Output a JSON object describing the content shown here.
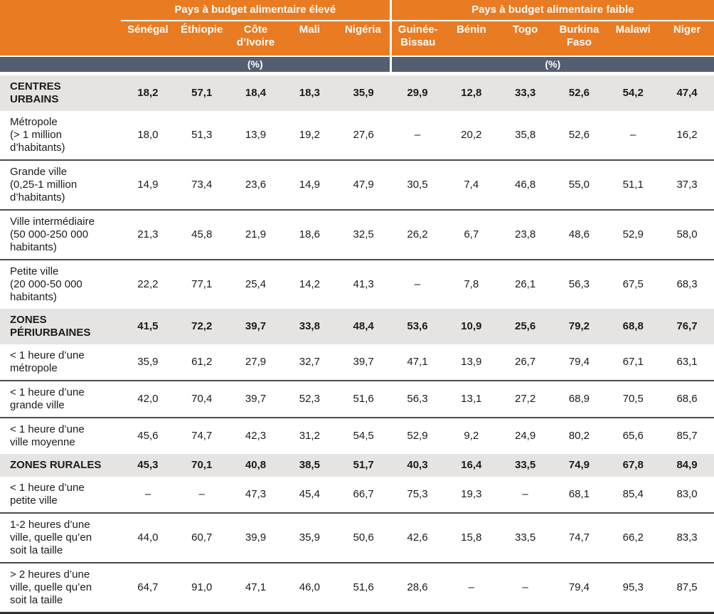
{
  "table": {
    "column_groups": [
      {
        "label": "Pays à budget alimentaire élevé",
        "unit": "(%)",
        "countries": [
          "Sénégal",
          "Éthiopie",
          "Côte\nd’Ivoire",
          "Mali",
          "Nigéria"
        ]
      },
      {
        "label": "Pays à budget alimentaire faible",
        "unit": "(%)",
        "countries": [
          "Guinée-\nBissau",
          "Bénin",
          "Togo",
          "Burkina\nFaso",
          "Malawi",
          "Niger"
        ]
      }
    ],
    "rows": [
      {
        "label": "CENTRES\nURBAINS",
        "type": "section",
        "values": [
          "18,2",
          "57,1",
          "18,4",
          "18,3",
          "35,9",
          "29,9",
          "12,8",
          "33,3",
          "52,6",
          "54,2",
          "47,4"
        ]
      },
      {
        "label": "Métropole\n(> 1 million\nd’habitants)",
        "type": "data",
        "values": [
          "18,0",
          "51,3",
          "13,9",
          "19,2",
          "27,6",
          "–",
          "20,2",
          "35,8",
          "52,6",
          "–",
          "16,2"
        ]
      },
      {
        "label": "Grande ville\n(0,25-1 million\nd’habitants)",
        "type": "data",
        "values": [
          "14,9",
          "73,4",
          "23,6",
          "14,9",
          "47,9",
          "30,5",
          "7,4",
          "46,8",
          "55,0",
          "51,1",
          "37,3"
        ]
      },
      {
        "label": "Ville intermédiaire\n(50 000-250 000\nhabitants)",
        "type": "data",
        "values": [
          "21,3",
          "45,8",
          "21,9",
          "18,6",
          "32,5",
          "26,2",
          "6,7",
          "23,8",
          "48,6",
          "52,9",
          "58,0"
        ]
      },
      {
        "label": "Petite ville\n(20 000-50 000\nhabitants)",
        "type": "data",
        "values": [
          "22,2",
          "77,1",
          "25,4",
          "14,2",
          "41,3",
          "–",
          "7,8",
          "26,1",
          "56,3",
          "67,5",
          "68,3"
        ]
      },
      {
        "label": "ZONES\nPÉRIURBAINES",
        "type": "section",
        "values": [
          "41,5",
          "72,2",
          "39,7",
          "33,8",
          "48,4",
          "53,6",
          "10,9",
          "25,6",
          "79,2",
          "68,8",
          "76,7"
        ]
      },
      {
        "label": "< 1 heure d’une\nmétropole",
        "type": "data",
        "values": [
          "35,9",
          "61,2",
          "27,9",
          "32,7",
          "39,7",
          "47,1",
          "13,9",
          "26,7",
          "79,4",
          "67,1",
          "63,1"
        ]
      },
      {
        "label": "< 1 heure d’une\ngrande ville",
        "type": "data",
        "values": [
          "42,0",
          "70,4",
          "39,7",
          "52,3",
          "51,6",
          "56,3",
          "13,1",
          "27,2",
          "68,9",
          "70,5",
          "68,6"
        ]
      },
      {
        "label": "< 1 heure d’une\nville moyenne",
        "type": "data",
        "values": [
          "45,6",
          "74,7",
          "42,3",
          "31,2",
          "54,5",
          "52,9",
          "9,2",
          "24,9",
          "80,2",
          "65,6",
          "85,7"
        ]
      },
      {
        "label": "ZONES RURALES",
        "type": "section",
        "values": [
          "45,3",
          "70,1",
          "40,8",
          "38,5",
          "51,7",
          "40,3",
          "16,4",
          "33,5",
          "74,9",
          "67,8",
          "84,9"
        ]
      },
      {
        "label": "< 1 heure d’une\npetite ville",
        "type": "data",
        "values": [
          "–",
          "–",
          "47,3",
          "45,4",
          "66,7",
          "75,3",
          "19,3",
          "–",
          "68,1",
          "85,4",
          "83,0"
        ]
      },
      {
        "label": "1-2 heures d’une\nville, quelle qu’en\nsoit la taille",
        "type": "data",
        "values": [
          "44,0",
          "60,7",
          "39,9",
          "35,9",
          "50,6",
          "42,6",
          "15,8",
          "33,5",
          "74,7",
          "66,2",
          "83,3"
        ]
      },
      {
        "label": "> 2 heures d’une\nville, quelle qu’en\nsoit la taille",
        "type": "data",
        "values": [
          "64,7",
          "91,0",
          "47,1",
          "46,0",
          "51,6",
          "28,6",
          "–",
          "–",
          "79,4",
          "95,3",
          "87,5"
        ]
      }
    ]
  },
  "colors": {
    "header_orange": "#e97b22",
    "unit_band_slate": "#545e70",
    "section_row_gray": "#e5e4e2",
    "row_rule": "#4b4b4b",
    "bottom_rule": "#2f2f2f",
    "text": "#1b1b1b",
    "header_text": "#ffffff"
  }
}
